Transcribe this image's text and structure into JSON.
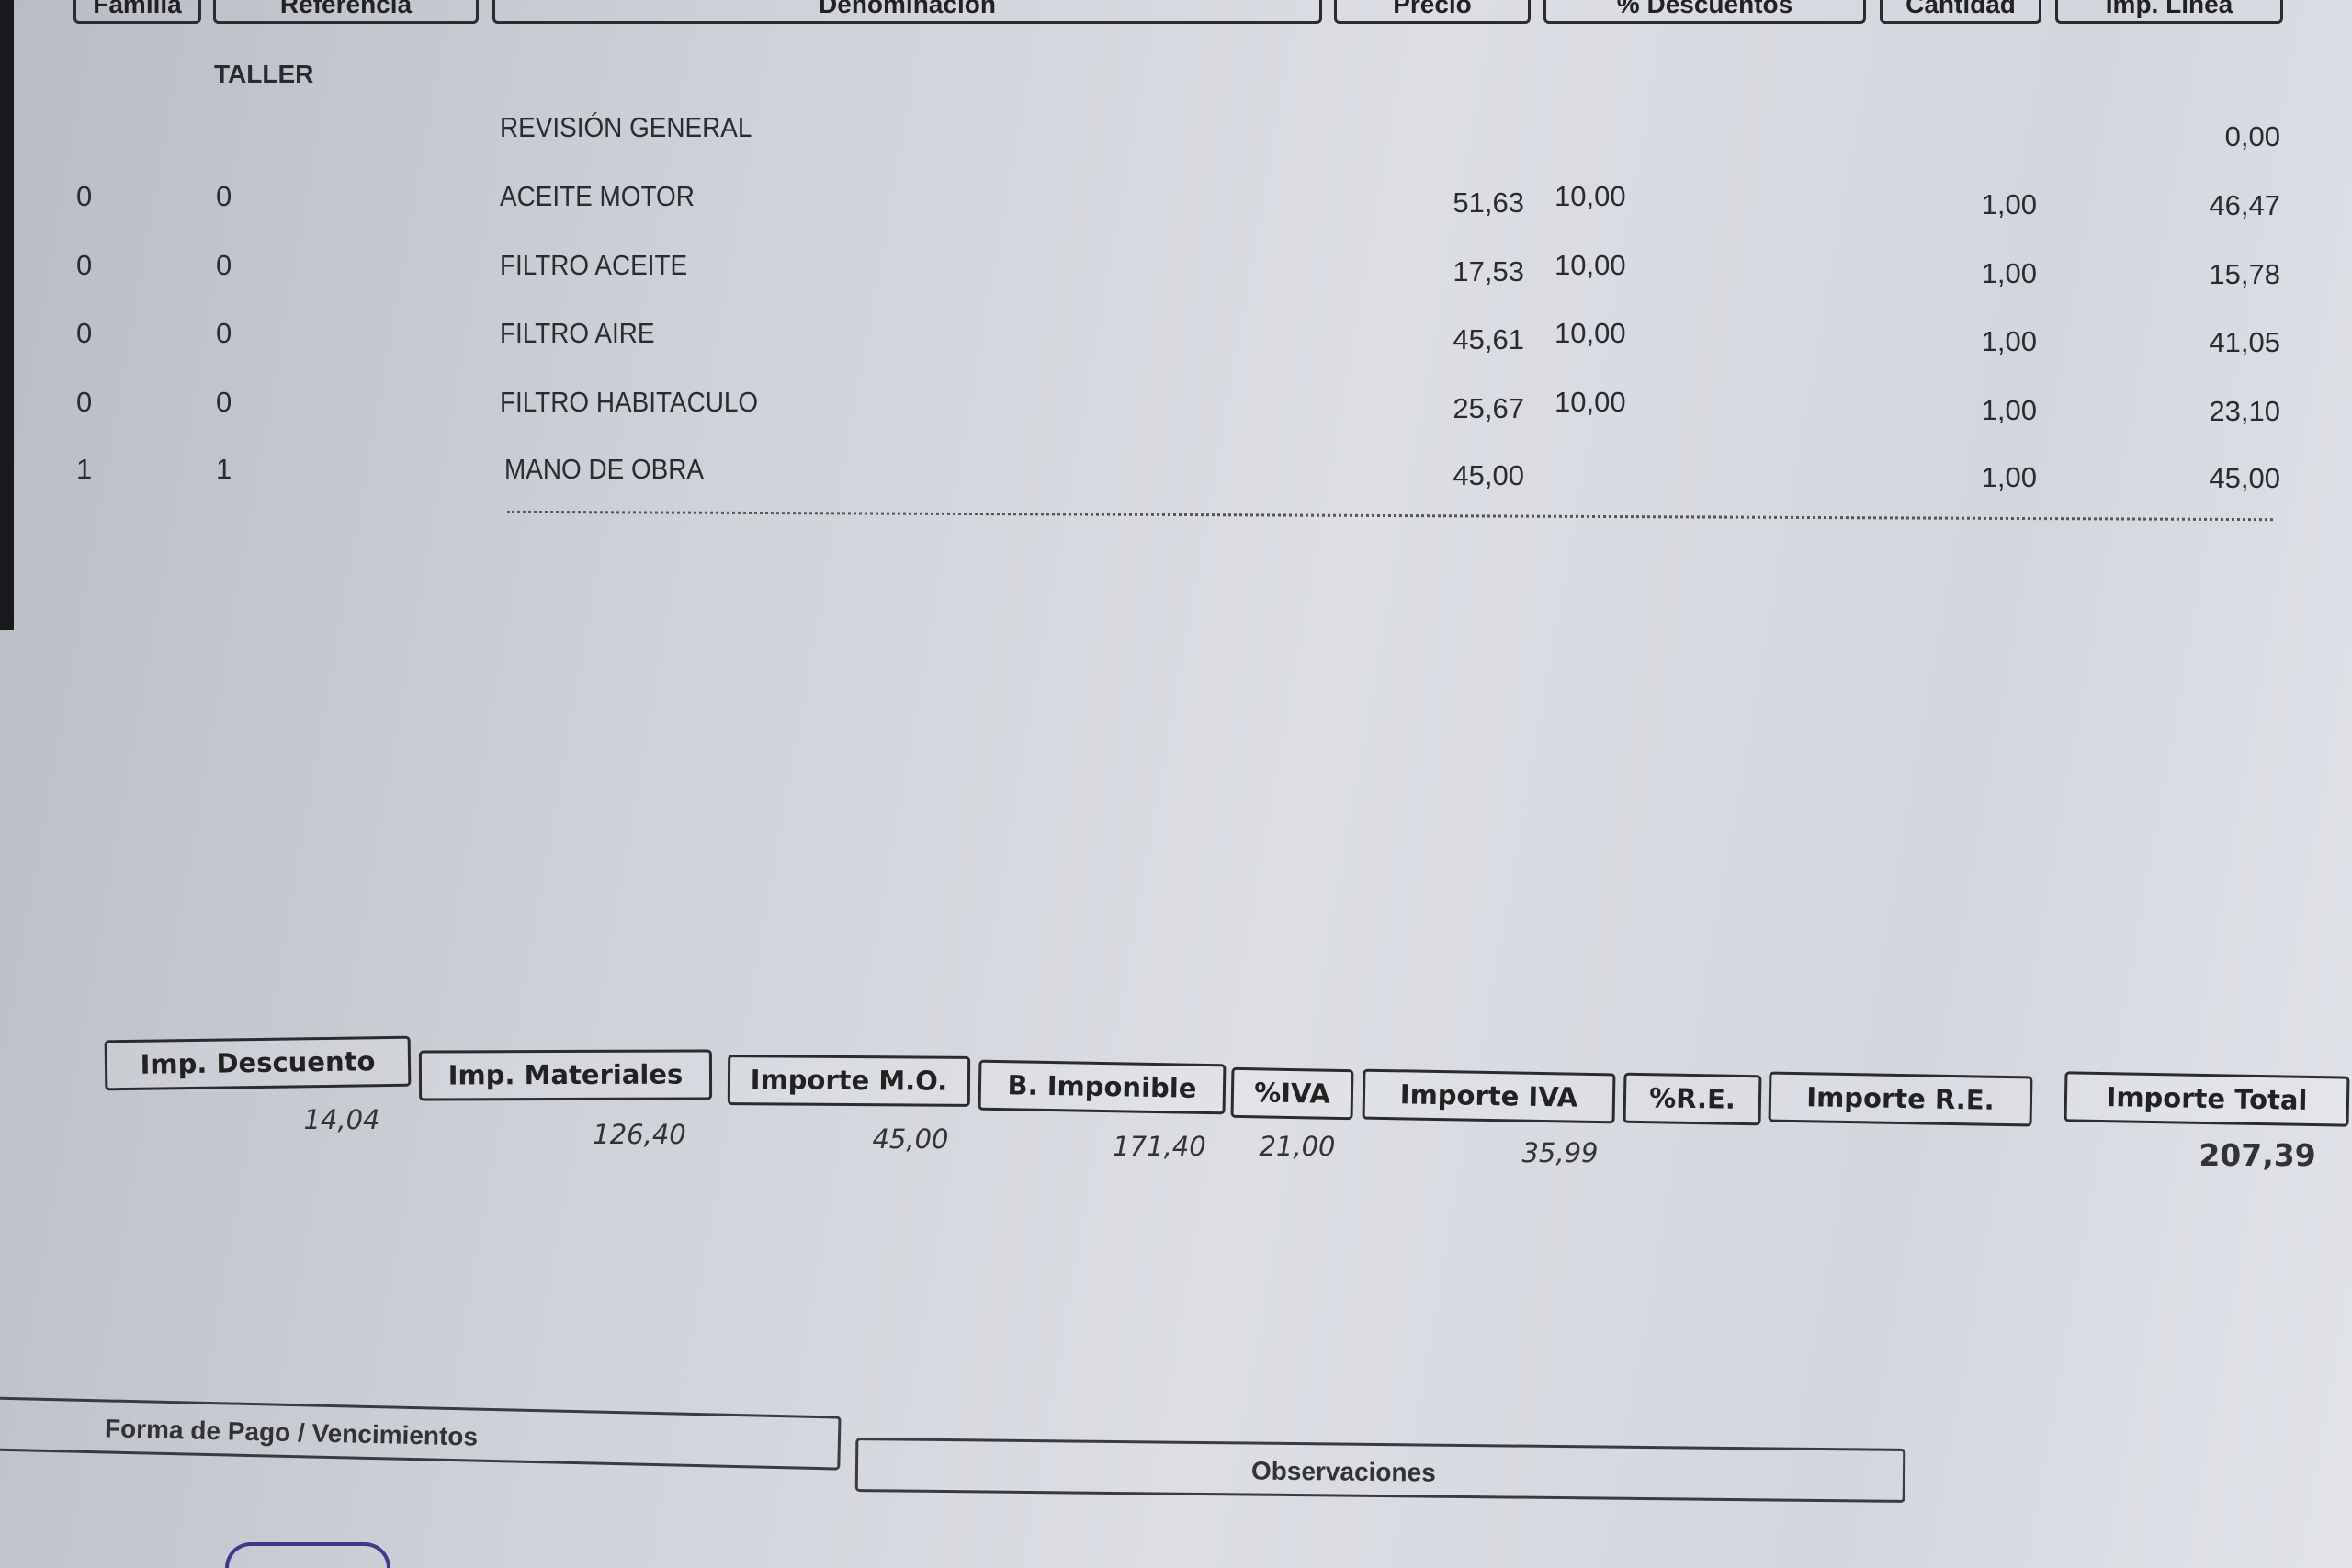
{
  "table": {
    "headers": [
      "Familia",
      "Referencia",
      "Denominación",
      "Precio",
      "% Descuentos",
      "Cantidad",
      "Imp. Línea"
    ],
    "section": "TALLER",
    "rows": [
      {
        "familia": "",
        "referencia": "",
        "denominacion": "REVISIÓN GENERAL",
        "precio": "",
        "descuento": "",
        "cantidad": "",
        "importe": "0,00"
      },
      {
        "familia": "0",
        "referencia": "0",
        "denominacion": "ACEITE MOTOR",
        "precio": "51,63",
        "descuento": "10,00",
        "cantidad": "1,00",
        "importe": "46,47"
      },
      {
        "familia": "0",
        "referencia": "0",
        "denominacion": "FILTRO ACEITE",
        "precio": "17,53",
        "descuento": "10,00",
        "cantidad": "1,00",
        "importe": "15,78"
      },
      {
        "familia": "0",
        "referencia": "0",
        "denominacion": "FILTRO AIRE",
        "precio": "45,61",
        "descuento": "10,00",
        "cantidad": "1,00",
        "importe": "41,05"
      },
      {
        "familia": "0",
        "referencia": "0",
        "denominacion": "FILTRO HABITACULO",
        "precio": "25,67",
        "descuento": "10,00",
        "cantidad": "1,00",
        "importe": "23,10"
      },
      {
        "familia": "1",
        "referencia": "1",
        "denominacion": "MANO DE OBRA",
        "precio": "45,00",
        "descuento": "",
        "cantidad": "1,00",
        "importe": "45,00"
      }
    ]
  },
  "totals": [
    {
      "label": "Imp. Descuento",
      "value": "14,04"
    },
    {
      "label": "Imp. Materiales",
      "value": "126,40"
    },
    {
      "label": "Importe M.O.",
      "value": "45,00"
    },
    {
      "label": "B. Imponible",
      "value": "171,40"
    },
    {
      "label": "%IVA",
      "value": "21,00"
    },
    {
      "label": "Importe IVA",
      "value": "35,99"
    },
    {
      "label": "%R.E.",
      "value": ""
    },
    {
      "label": "Importe R.E.",
      "value": ""
    },
    {
      "label": "Importe Total",
      "value": "207,39"
    }
  ],
  "footer": {
    "payment": "Forma de Pago / Vencimientos",
    "observations": "Observaciones"
  }
}
